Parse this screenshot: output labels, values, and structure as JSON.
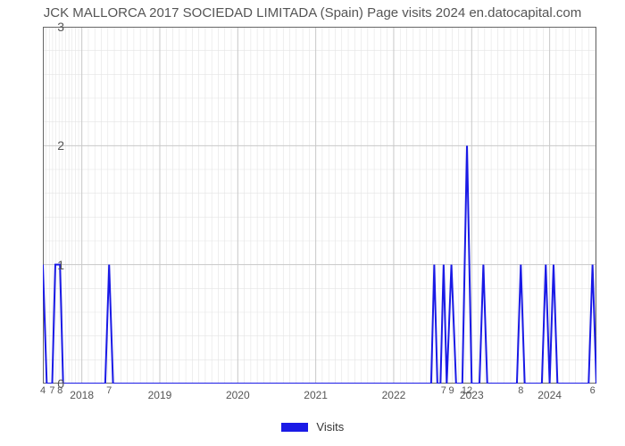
{
  "chart": {
    "type": "line",
    "title": "JCK MALLORCA 2017 SOCIEDAD LIMITADA (Spain) Page visits 2024 en.datocapital.com",
    "title_fontsize": 15,
    "title_color": "#555555",
    "background_color": "#ffffff",
    "plot_border_color": "#666666",
    "grid_major_color": "#c8c8c8",
    "grid_minor_color": "#e4e4e4",
    "line_color": "#1a1ae6",
    "line_width": 2,
    "legend_label": "Visits",
    "legend_swatch_color": "#1a1ae6",
    "x_domain": [
      2017.5,
      2024.6
    ],
    "y_domain": [
      0,
      3
    ],
    "x_ticks_major": [
      2018,
      2019,
      2020,
      2021,
      2022,
      2023,
      2024
    ],
    "y_ticks_major": [
      0,
      1,
      2,
      3
    ],
    "x_minor_per_major": 12,
    "y_minor_per_major": 5,
    "tick_label_color": "#555555",
    "tick_label_fontsize": 14,
    "data_label_fontsize": 11,
    "series": [
      {
        "x": 2017.5,
        "y": 1,
        "label": "4"
      },
      {
        "x": 2017.55,
        "y": 0,
        "label": ""
      },
      {
        "x": 2017.62,
        "y": 0,
        "label": "7"
      },
      {
        "x": 2017.66,
        "y": 1,
        "label": ""
      },
      {
        "x": 2017.72,
        "y": 1,
        "label": "8"
      },
      {
        "x": 2017.76,
        "y": 0,
        "label": ""
      },
      {
        "x": 2018.3,
        "y": 0,
        "label": ""
      },
      {
        "x": 2018.35,
        "y": 1,
        "label": "7"
      },
      {
        "x": 2018.4,
        "y": 0,
        "label": ""
      },
      {
        "x": 2022.48,
        "y": 0,
        "label": ""
      },
      {
        "x": 2022.52,
        "y": 1,
        "label": ""
      },
      {
        "x": 2022.56,
        "y": 0,
        "label": ""
      },
      {
        "x": 2022.6,
        "y": 0,
        "label": ""
      },
      {
        "x": 2022.64,
        "y": 1,
        "label": "7"
      },
      {
        "x": 2022.68,
        "y": 0,
        "label": ""
      },
      {
        "x": 2022.74,
        "y": 1,
        "label": "9"
      },
      {
        "x": 2022.8,
        "y": 0,
        "label": ""
      },
      {
        "x": 2022.88,
        "y": 0,
        "label": ""
      },
      {
        "x": 2022.94,
        "y": 2,
        "label": "12"
      },
      {
        "x": 2023.0,
        "y": 0,
        "label": ""
      },
      {
        "x": 2023.1,
        "y": 0,
        "label": ""
      },
      {
        "x": 2023.15,
        "y": 1,
        "label": ""
      },
      {
        "x": 2023.2,
        "y": 0,
        "label": ""
      },
      {
        "x": 2023.58,
        "y": 0,
        "label": ""
      },
      {
        "x": 2023.63,
        "y": 1,
        "label": "8"
      },
      {
        "x": 2023.68,
        "y": 0,
        "label": ""
      },
      {
        "x": 2023.9,
        "y": 0,
        "label": ""
      },
      {
        "x": 2023.95,
        "y": 1,
        "label": ""
      },
      {
        "x": 2024.0,
        "y": 0,
        "label": ""
      },
      {
        "x": 2024.05,
        "y": 1,
        "label": ""
      },
      {
        "x": 2024.1,
        "y": 0,
        "label": ""
      },
      {
        "x": 2024.5,
        "y": 0,
        "label": ""
      },
      {
        "x": 2024.55,
        "y": 1,
        "label": "6"
      },
      {
        "x": 2024.6,
        "y": 0,
        "label": ""
      }
    ]
  }
}
